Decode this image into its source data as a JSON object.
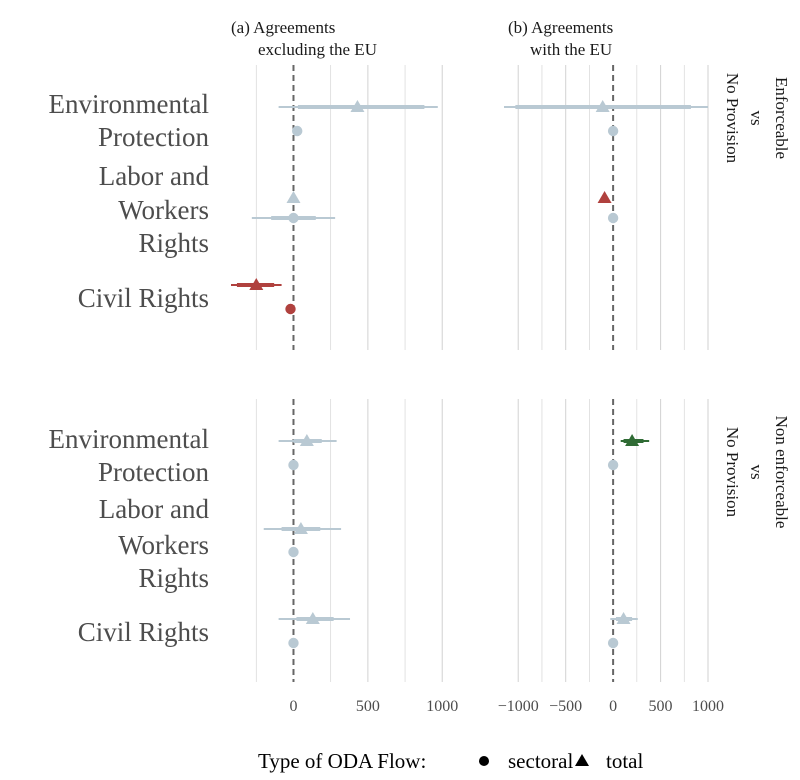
{
  "chart_data": {
    "type": "scatter",
    "title": "",
    "columns": [
      "(a) Agreements|excluding the EU",
      "(b) Agreements|with the EU"
    ],
    "rows": [
      "Enforceable|vs|No Provision",
      "Non enforceable|vs|No Provision"
    ],
    "categories": [
      "Environmental|Protection",
      "Labor and|Workers|Rights",
      "Civil Rights"
    ],
    "x_ticks": [
      [
        0,
        500,
        1000
      ],
      [
        -1000,
        -500,
        0,
        500,
        1000
      ]
    ],
    "x_tick_labels": [
      [
        "0",
        "500",
        "1000"
      ],
      [
        "−1000",
        "−500",
        "0",
        "500",
        "1000"
      ]
    ],
    "xlim": [
      [
        -420,
        1200
      ],
      [
        -1150,
        1000
      ]
    ],
    "reference_line": 0,
    "colors": {
      "neutral": "#b9c9d3",
      "negative": "#b0413e",
      "positive": "#2f6b34",
      "zero_line": "#666666",
      "grid": "#d6d6d6"
    },
    "points": [
      {
        "col": 0,
        "row": 0,
        "cat": 0,
        "flow": "total",
        "estimate": 430,
        "ci": [
          -100,
          970
        ],
        "ci_inner": [
          30,
          880
        ],
        "color": "neutral"
      },
      {
        "col": 0,
        "row": 0,
        "cat": 0,
        "flow": "sectoral",
        "estimate": 25,
        "ci": [
          25,
          25
        ],
        "ci_inner": [
          25,
          25
        ],
        "color": "neutral"
      },
      {
        "col": 0,
        "row": 0,
        "cat": 1,
        "flow": "total",
        "estimate": 0,
        "ci": [
          0,
          0
        ],
        "ci_inner": [
          0,
          0
        ],
        "color": "neutral"
      },
      {
        "col": 0,
        "row": 0,
        "cat": 1,
        "flow": "sectoral",
        "estimate": 0,
        "ci": [
          -280,
          280
        ],
        "ci_inner": [
          -150,
          150
        ],
        "color": "neutral"
      },
      {
        "col": 0,
        "row": 0,
        "cat": 2,
        "flow": "total",
        "estimate": -250,
        "ci": [
          -420,
          -80
        ],
        "ci_inner": [
          -380,
          -130
        ],
        "color": "negative"
      },
      {
        "col": 0,
        "row": 0,
        "cat": 2,
        "flow": "sectoral",
        "estimate": -20,
        "ci": [
          -20,
          -20
        ],
        "ci_inner": [
          -20,
          -20
        ],
        "color": "negative"
      },
      {
        "col": 1,
        "row": 0,
        "cat": 0,
        "flow": "total",
        "estimate": -110,
        "ci": [
          -1200,
          1000
        ],
        "ci_inner": [
          -1030,
          820
        ],
        "color": "neutral"
      },
      {
        "col": 1,
        "row": 0,
        "cat": 0,
        "flow": "sectoral",
        "estimate": 0,
        "ci": [
          0,
          0
        ],
        "ci_inner": [
          0,
          0
        ],
        "color": "neutral"
      },
      {
        "col": 1,
        "row": 0,
        "cat": 1,
        "flow": "total",
        "estimate": -90,
        "ci": [
          -120,
          -60
        ],
        "ci_inner": [
          -110,
          -70
        ],
        "color": "negative"
      },
      {
        "col": 1,
        "row": 0,
        "cat": 1,
        "flow": "sectoral",
        "estimate": 0,
        "ci": [
          0,
          0
        ],
        "ci_inner": [
          0,
          0
        ],
        "color": "neutral"
      },
      {
        "col": 0,
        "row": 1,
        "cat": 0,
        "flow": "total",
        "estimate": 90,
        "ci": [
          -100,
          290
        ],
        "ci_inner": [
          0,
          190
        ],
        "color": "neutral"
      },
      {
        "col": 0,
        "row": 1,
        "cat": 0,
        "flow": "sectoral",
        "estimate": 0,
        "ci": [
          0,
          0
        ],
        "ci_inner": [
          0,
          0
        ],
        "color": "neutral"
      },
      {
        "col": 0,
        "row": 1,
        "cat": 1,
        "flow": "total",
        "estimate": 50,
        "ci": [
          -200,
          320
        ],
        "ci_inner": [
          -80,
          180
        ],
        "color": "neutral"
      },
      {
        "col": 0,
        "row": 1,
        "cat": 1,
        "flow": "sectoral",
        "estimate": 0,
        "ci": [
          0,
          0
        ],
        "ci_inner": [
          0,
          0
        ],
        "color": "neutral"
      },
      {
        "col": 0,
        "row": 1,
        "cat": 2,
        "flow": "total",
        "estimate": 130,
        "ci": [
          -100,
          380
        ],
        "ci_inner": [
          20,
          270
        ],
        "color": "neutral"
      },
      {
        "col": 0,
        "row": 1,
        "cat": 2,
        "flow": "sectoral",
        "estimate": 0,
        "ci": [
          0,
          0
        ],
        "ci_inner": [
          0,
          0
        ],
        "color": "neutral"
      },
      {
        "col": 1,
        "row": 1,
        "cat": 0,
        "flow": "total",
        "estimate": 200,
        "ci": [
          80,
          380
        ],
        "ci_inner": [
          110,
          320
        ],
        "color": "positive"
      },
      {
        "col": 1,
        "row": 1,
        "cat": 0,
        "flow": "sectoral",
        "estimate": 0,
        "ci": [
          0,
          0
        ],
        "ci_inner": [
          0,
          0
        ],
        "color": "neutral"
      },
      {
        "col": 1,
        "row": 1,
        "cat": 2,
        "flow": "total",
        "estimate": 110,
        "ci": [
          -30,
          260
        ],
        "ci_inner": [
          30,
          200
        ],
        "color": "neutral"
      },
      {
        "col": 1,
        "row": 1,
        "cat": 2,
        "flow": "sectoral",
        "estimate": 0,
        "ci": [
          0,
          0
        ],
        "ci_inner": [
          0,
          0
        ],
        "color": "neutral"
      }
    ],
    "legend": {
      "title": "Type of ODA Flow:",
      "position": "bottom",
      "entries": [
        {
          "label": "sectoral",
          "shape": "circle"
        },
        {
          "label": "total",
          "shape": "triangle"
        }
      ]
    }
  }
}
